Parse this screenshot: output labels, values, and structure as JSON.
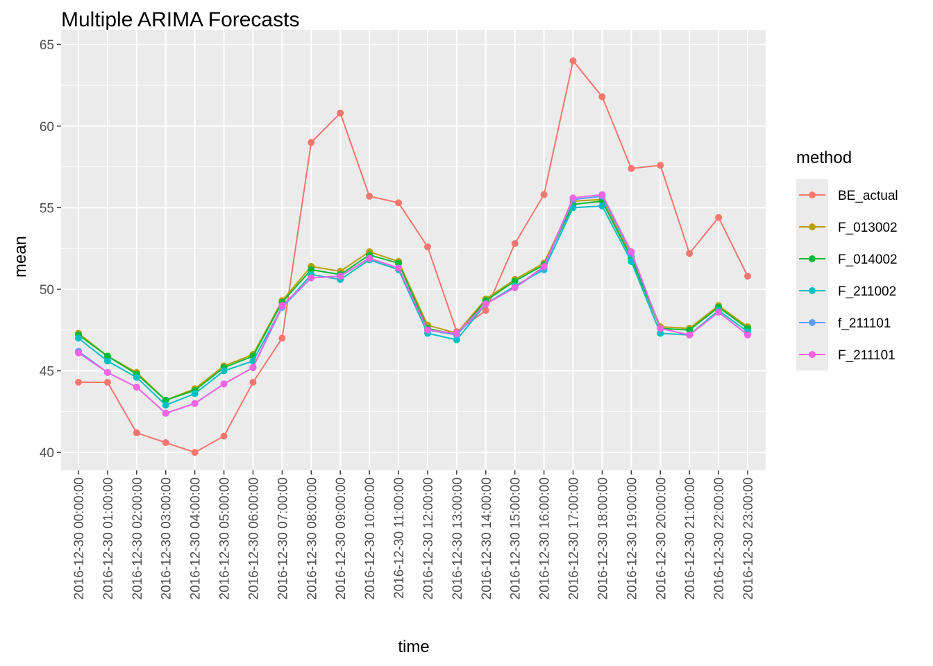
{
  "chart_data": {
    "type": "line",
    "title": "Multiple ARIMA Forecasts",
    "xlabel": "time",
    "ylabel": "mean",
    "ylim": [
      38.9,
      65.9
    ],
    "yticks": [
      40,
      45,
      50,
      55,
      60,
      65
    ],
    "grid": true,
    "legend_title": "method",
    "legend_position": "right",
    "x": [
      "2016-12-30 00:00:00",
      "2016-12-30 01:00:00",
      "2016-12-30 02:00:00",
      "2016-12-30 03:00:00",
      "2016-12-30 04:00:00",
      "2016-12-30 05:00:00",
      "2016-12-30 06:00:00",
      "2016-12-30 07:00:00",
      "2016-12-30 08:00:00",
      "2016-12-30 09:00:00",
      "2016-12-30 10:00:00",
      "2016-12-30 11:00:00",
      "2016-12-30 12:00:00",
      "2016-12-30 13:00:00",
      "2016-12-30 14:00:00",
      "2016-12-30 15:00:00",
      "2016-12-30 16:00:00",
      "2016-12-30 17:00:00",
      "2016-12-30 18:00:00",
      "2016-12-30 19:00:00",
      "2016-12-30 20:00:00",
      "2016-12-30 21:00:00",
      "2016-12-30 22:00:00",
      "2016-12-30 23:00:00"
    ],
    "series": [
      {
        "name": "BE_actual",
        "color": "#F8766D",
        "values": [
          44.3,
          44.3,
          41.2,
          40.6,
          40.0,
          41.0,
          44.3,
          47.0,
          59.0,
          60.8,
          55.7,
          55.3,
          52.6,
          47.4,
          48.7,
          52.8,
          55.8,
          64.0,
          61.8,
          57.4,
          57.6,
          52.2,
          54.4,
          50.8
        ]
      },
      {
        "name": "F_013002",
        "color": "#B79F00",
        "values": [
          47.3,
          45.9,
          44.9,
          43.2,
          43.9,
          45.3,
          46.0,
          49.3,
          51.4,
          51.1,
          52.3,
          51.7,
          47.8,
          47.3,
          49.4,
          50.6,
          51.6,
          55.4,
          55.5,
          52.0,
          47.7,
          47.6,
          49.0,
          47.7
        ]
      },
      {
        "name": "F_014002",
        "color": "#00BA38",
        "values": [
          47.2,
          45.9,
          44.8,
          43.2,
          43.8,
          45.2,
          45.9,
          49.2,
          51.2,
          50.9,
          52.1,
          51.6,
          47.6,
          47.2,
          49.3,
          50.5,
          51.5,
          55.2,
          55.4,
          51.9,
          47.6,
          47.5,
          48.9,
          47.6
        ]
      },
      {
        "name": "F_211002",
        "color": "#00BFC4",
        "values": [
          47.0,
          45.6,
          44.6,
          42.9,
          43.6,
          45.0,
          45.6,
          48.9,
          50.9,
          50.6,
          51.8,
          51.2,
          47.3,
          46.9,
          49.1,
          50.2,
          51.2,
          55.0,
          55.1,
          51.7,
          47.3,
          47.2,
          48.7,
          47.4
        ]
      },
      {
        "name": "f_211101",
        "color": "#619CFF",
        "values": [
          46.2,
          44.9,
          44.0,
          42.4,
          43.0,
          44.2,
          45.2,
          48.9,
          50.7,
          50.8,
          51.9,
          51.3,
          47.5,
          47.2,
          49.1,
          50.1,
          51.3,
          55.5,
          55.7,
          52.2,
          47.6,
          47.2,
          48.6,
          47.2
        ]
      },
      {
        "name": "F_211101",
        "color": "#F564E3",
        "values": [
          46.1,
          44.9,
          44.0,
          42.4,
          43.0,
          44.2,
          45.2,
          49.0,
          50.7,
          50.8,
          51.9,
          51.3,
          47.5,
          47.3,
          49.1,
          50.1,
          51.4,
          55.6,
          55.8,
          52.3,
          47.6,
          47.2,
          48.6,
          47.2
        ]
      }
    ]
  }
}
